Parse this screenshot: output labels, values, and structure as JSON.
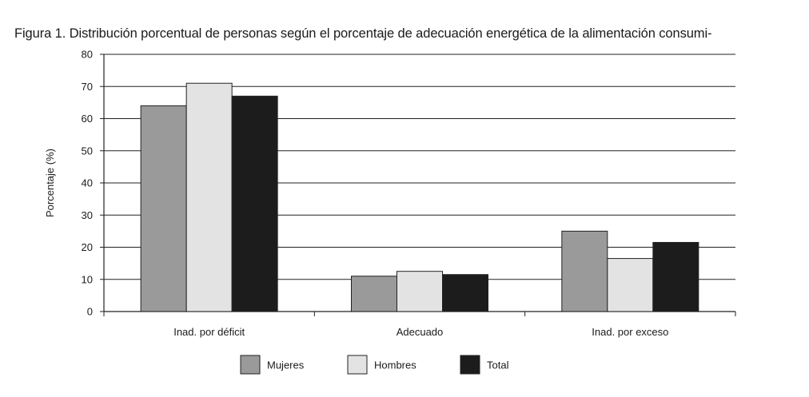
{
  "figure_title": "Figura 1. Distribución porcentual de personas según el porcentaje de adecuación energética de la alimentación consumi-",
  "colors": {
    "Mujeres": "#9a9a9a",
    "Hombres": "#e3e3e3",
    "Total": "#1c1c1c"
  },
  "chart_data": {
    "type": "bar",
    "title": "Figura 1. Distribución porcentual de personas según el porcentaje de adecuación energética de la alimentación consumi-",
    "xlabel": "",
    "ylabel": "Porcentaje (%)",
    "ylim": [
      0,
      80
    ],
    "yticks": [
      0,
      10,
      20,
      30,
      40,
      50,
      60,
      70,
      80
    ],
    "grid": true,
    "legend_position": "bottom-center",
    "categories": [
      "Inad. por déficit",
      "Adecuado",
      "Inad. por exceso"
    ],
    "series": [
      {
        "name": "Mujeres",
        "values": [
          64,
          11,
          25
        ]
      },
      {
        "name": "Hombres",
        "values": [
          71,
          12.5,
          16.5
        ]
      },
      {
        "name": "Total",
        "values": [
          67,
          11.5,
          21.5
        ]
      }
    ]
  }
}
